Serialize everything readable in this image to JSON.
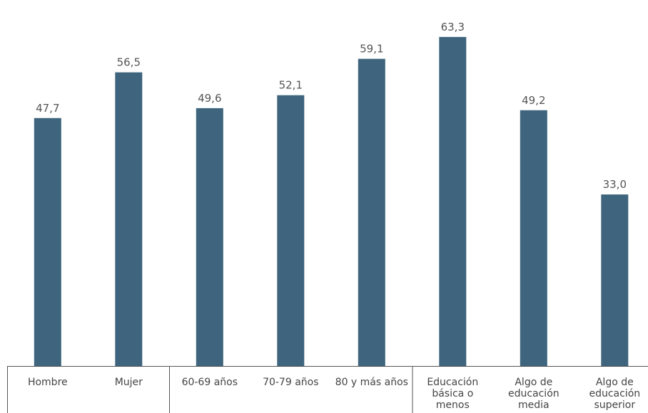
{
  "chart_data": {
    "type": "bar",
    "categories": [
      "Hombre",
      "Mujer",
      "60-69 años",
      "70-79 años",
      "80 y más años",
      "Educación básica o menos",
      "Algo de educación media",
      "Algo de educación superior"
    ],
    "category_lines": [
      [
        "Hombre"
      ],
      [
        "Mujer"
      ],
      [
        "60-69 años"
      ],
      [
        "70-79 años"
      ],
      [
        "80 y más años"
      ],
      [
        "Educación",
        "básica o",
        "menos"
      ],
      [
        "Algo de",
        "educación",
        "media"
      ],
      [
        "Algo de",
        "educación",
        "superior"
      ]
    ],
    "values": [
      47.7,
      56.5,
      49.6,
      52.1,
      59.1,
      63.3,
      49.2,
      33.0
    ],
    "value_labels": [
      "47,7",
      "56,5",
      "49,6",
      "52,1",
      "59,1",
      "63,3",
      "49,2",
      "33,0"
    ],
    "groups": [
      [
        "Hombre",
        "Mujer"
      ],
      [
        "60-69 años",
        "70-79 años",
        "80 y más años"
      ],
      [
        "Educación básica o menos",
        "Algo de educación media",
        "Algo de educación superior"
      ]
    ],
    "title": "",
    "xlabel": "",
    "ylabel": "",
    "ylim": [
      0,
      70
    ],
    "grid": false,
    "legend": "none",
    "bar_color": "#3e657d",
    "axis_color": "#555555"
  }
}
